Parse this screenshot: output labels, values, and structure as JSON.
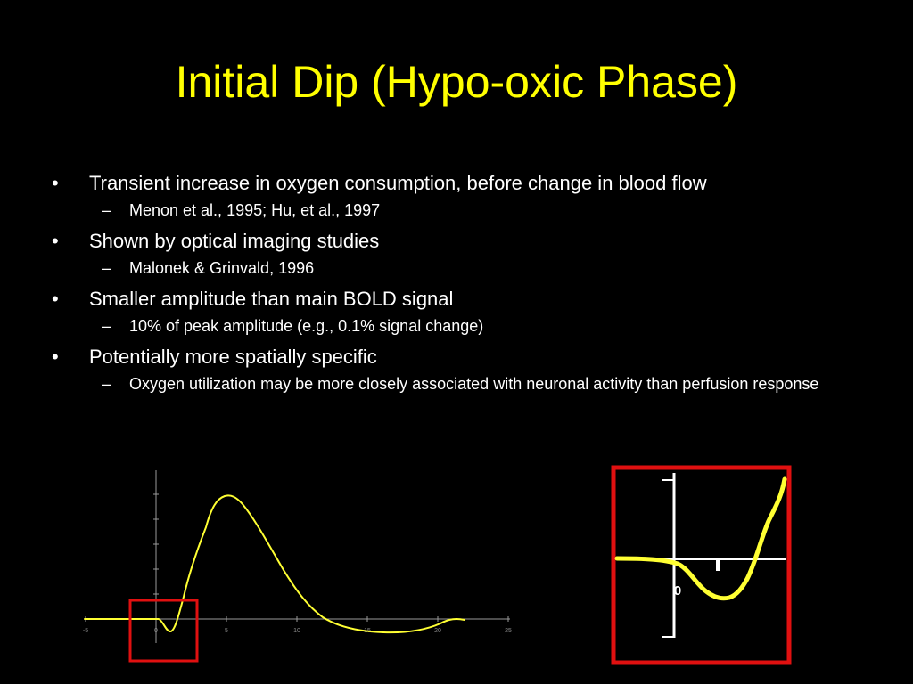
{
  "slide": {
    "title": "Initial Dip (Hypo-oxic Phase)",
    "bullet_char": "•",
    "sub_bullet_char": "–",
    "bullets": [
      {
        "text": "Transient increase in oxygen consumption, before change in blood flow",
        "subs": [
          "Menon et al., 1995; Hu, et al., 1997"
        ]
      },
      {
        "text": "Shown by optical imaging studies",
        "subs": [
          "Malonek & Grinvald, 1996"
        ]
      },
      {
        "text": "Smaller amplitude than main BOLD signal",
        "subs": [
          "10% of peak amplitude (e.g., 0.1% signal change)"
        ]
      },
      {
        "text": "Potentially more spatially specific",
        "subs": [
          "Oxygen utilization may be more closely associated with neuronal activity than perfusion response"
        ]
      }
    ]
  },
  "colors": {
    "background": "#000000",
    "title": "#FFFF00",
    "text": "#FFFFFF",
    "curve": "#FFFF33",
    "highlight_box": "#E01010"
  },
  "figure": {
    "x_tick_labels": [
      "-5",
      "0",
      "5",
      "10",
      "15",
      "20",
      "25"
    ],
    "inset_marker": "0"
  }
}
